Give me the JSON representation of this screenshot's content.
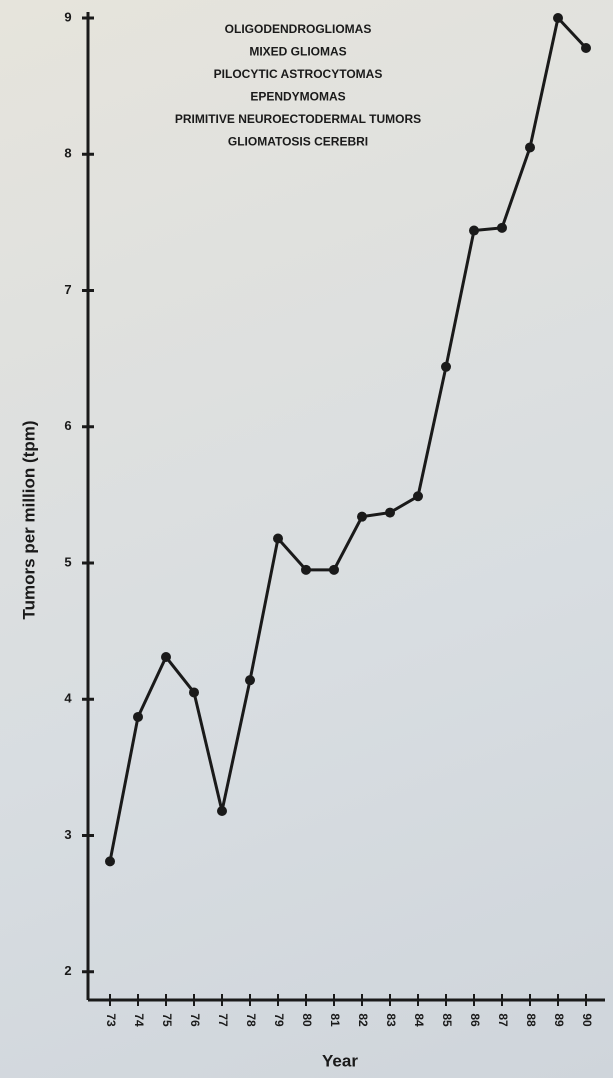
{
  "chart_data": {
    "type": "line",
    "title_lines": [
      "OLIGODENDROGLIOMAS",
      "MIXED GLIOMAS",
      "PILOCYTIC ASTROCYTOMAS",
      "EPENDYMOMAS",
      "PRIMITIVE NEUROECTODERMAL TUMORS",
      "GLIOMATOSIS CEREBRI"
    ],
    "y_label": "Tumors per million (tpm)",
    "x_label": "Year",
    "categories": [
      "73",
      "74",
      "75",
      "76",
      "77",
      "78",
      "79",
      "80",
      "81",
      "82",
      "83",
      "84",
      "85",
      "86",
      "87",
      "88",
      "89",
      "90"
    ],
    "values": [
      2.81,
      3.87,
      4.31,
      4.05,
      3.18,
      4.14,
      5.18,
      4.95,
      4.95,
      5.34,
      5.37,
      5.49,
      6.44,
      7.44,
      7.46,
      8.05,
      9.0,
      8.78
    ],
    "color": "#1a1a1a",
    "ylim": [
      1.8,
      9
    ],
    "yticks": [
      2,
      3,
      4,
      5,
      6,
      7,
      8,
      9
    ]
  }
}
